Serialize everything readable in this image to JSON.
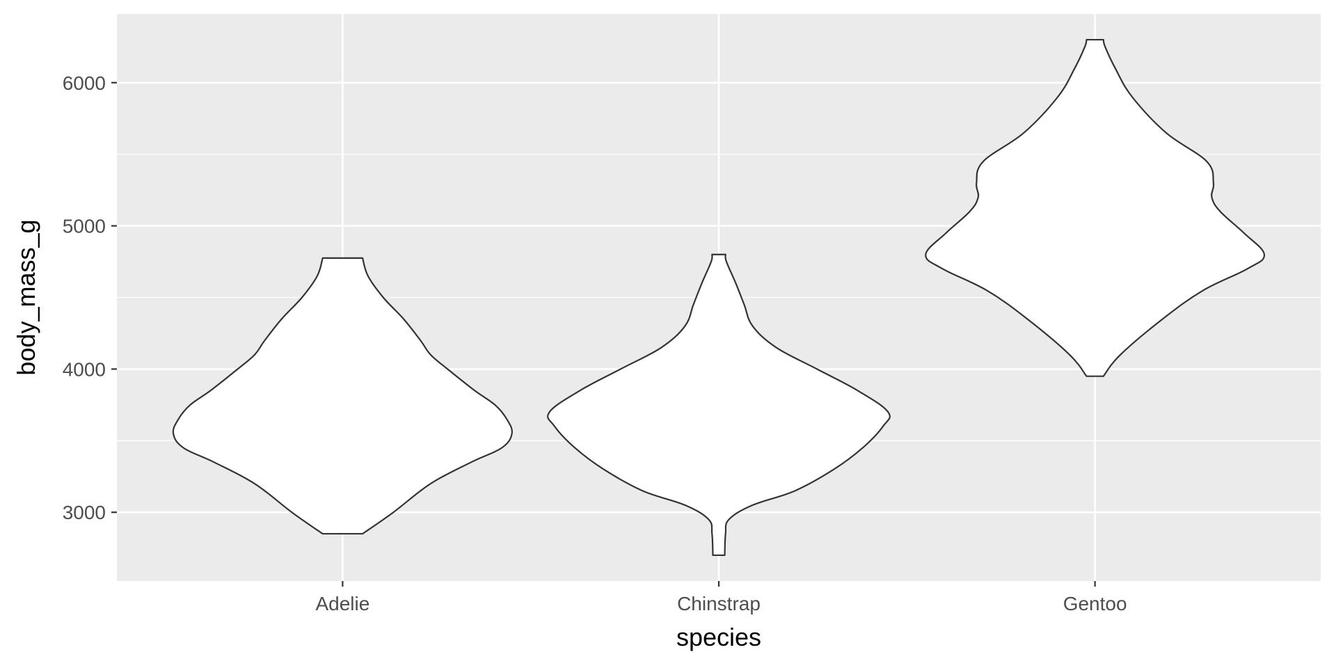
{
  "chart_data": {
    "type": "violin",
    "title": "",
    "xlabel": "species",
    "ylabel": "body_mass_g",
    "categories": [
      "Adelie",
      "Chinstrap",
      "Gentoo"
    ],
    "ylim": [
      2520,
      6480
    ],
    "y_ticks": [
      3000,
      4000,
      5000,
      6000
    ],
    "y_minor_ticks": [
      3500,
      4500,
      5500
    ],
    "grid": true,
    "legend": "none",
    "colors": {
      "panel": "#ebebeb",
      "grid": "#ffffff",
      "violin_fill": "#ffffff",
      "violin_stroke": "#333333",
      "tick_text": "#4d4d4d",
      "axis_title": "#000000",
      "tick_mark": "#333333"
    },
    "violins": [
      {
        "category": "Adelie",
        "min": 2850,
        "max": 4775,
        "profile": [
          [
            2850,
            0.118
          ],
          [
            3000,
            0.3
          ],
          [
            3200,
            0.52
          ],
          [
            3350,
            0.76
          ],
          [
            3450,
            0.94
          ],
          [
            3550,
            1.0
          ],
          [
            3650,
            0.97
          ],
          [
            3750,
            0.9
          ],
          [
            3850,
            0.78
          ],
          [
            4000,
            0.62
          ],
          [
            4100,
            0.52
          ],
          [
            4200,
            0.46
          ],
          [
            4350,
            0.36
          ],
          [
            4500,
            0.24
          ],
          [
            4650,
            0.15
          ],
          [
            4775,
            0.118
          ]
        ]
      },
      {
        "category": "Chinstrap",
        "min": 2700,
        "max": 4800,
        "profile": [
          [
            2700,
            0.035
          ],
          [
            2850,
            0.04
          ],
          [
            2950,
            0.06
          ],
          [
            3050,
            0.2
          ],
          [
            3150,
            0.45
          ],
          [
            3300,
            0.68
          ],
          [
            3450,
            0.85
          ],
          [
            3600,
            0.97
          ],
          [
            3700,
            1.0
          ],
          [
            3850,
            0.82
          ],
          [
            4000,
            0.58
          ],
          [
            4150,
            0.34
          ],
          [
            4300,
            0.2
          ],
          [
            4450,
            0.15
          ],
          [
            4600,
            0.1
          ],
          [
            4750,
            0.045
          ],
          [
            4800,
            0.04
          ]
        ]
      },
      {
        "category": "Gentoo",
        "min": 3950,
        "max": 6300,
        "profile": [
          [
            3950,
            0.05
          ],
          [
            4100,
            0.15
          ],
          [
            4350,
            0.4
          ],
          [
            4550,
            0.64
          ],
          [
            4700,
            0.9
          ],
          [
            4800,
            1.0
          ],
          [
            4950,
            0.88
          ],
          [
            5100,
            0.74
          ],
          [
            5200,
            0.69
          ],
          [
            5300,
            0.7
          ],
          [
            5450,
            0.66
          ],
          [
            5650,
            0.42
          ],
          [
            5900,
            0.22
          ],
          [
            6100,
            0.12
          ],
          [
            6250,
            0.06
          ],
          [
            6300,
            0.05
          ]
        ]
      }
    ]
  }
}
